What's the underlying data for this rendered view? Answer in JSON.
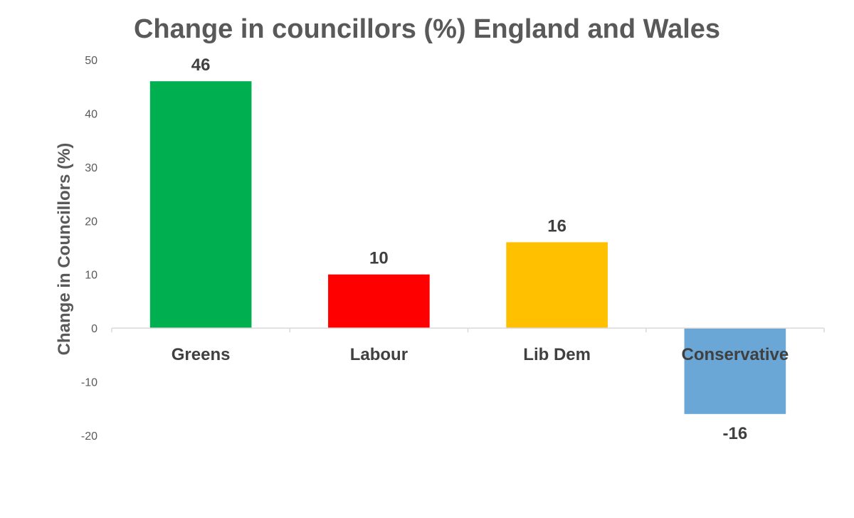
{
  "chart_data": {
    "type": "bar",
    "title": "Change in councillors (%) England and Wales",
    "xlabel": "",
    "ylabel": "Change in Councillors (%)",
    "categories": [
      "Greens",
      "Labour",
      "Lib Dem",
      "Conservative"
    ],
    "values": [
      46,
      10,
      16,
      -16
    ],
    "data_labels": [
      "46",
      "10",
      "16",
      "-16"
    ],
    "colors": [
      "#00b050",
      "#ff0000",
      "#ffc000",
      "#6aa6d6"
    ],
    "ylim": [
      -20,
      50
    ],
    "yticks": [
      50,
      40,
      30,
      20,
      10,
      0,
      -10,
      -20
    ],
    "grid": false,
    "legend": "none"
  }
}
